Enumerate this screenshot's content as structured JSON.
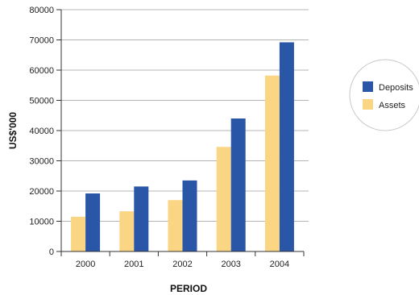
{
  "chart_data": {
    "type": "bar",
    "title": "",
    "xlabel": "PERIOD",
    "ylabel": "US$'000",
    "categories": [
      "2000",
      "2001",
      "2002",
      "2003",
      "2004"
    ],
    "yticks": [
      "0",
      "10000",
      "20000",
      "30000",
      "40000",
      "50000",
      "60000",
      "70000",
      "80000"
    ],
    "ylim": [
      0,
      80000
    ],
    "grid": true,
    "legend_position": "right",
    "series": [
      {
        "name": "Assets",
        "color": "#fad684",
        "values": [
          11500,
          13300,
          17000,
          34600,
          58200
        ]
      },
      {
        "name": "Deposits",
        "color": "#2a56a8",
        "values": [
          19200,
          21500,
          23500,
          44000,
          69200
        ]
      }
    ],
    "legend": [
      {
        "label": "Deposits",
        "color": "#2a56a8"
      },
      {
        "label": "Assets",
        "color": "#fad684"
      }
    ]
  }
}
